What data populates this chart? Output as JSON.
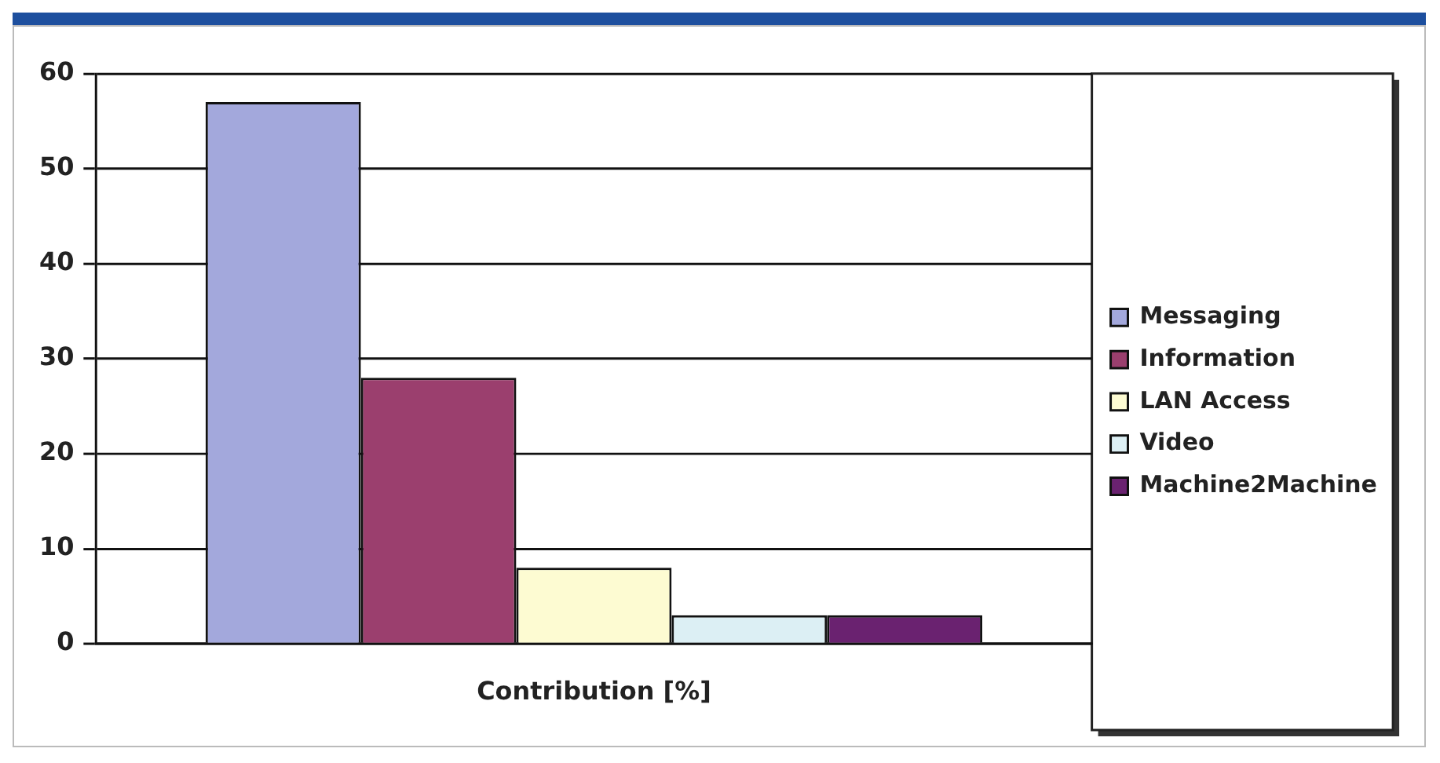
{
  "chart_data": {
    "type": "bar",
    "categories": [
      "Contribution [%]"
    ],
    "series": [
      {
        "name": "Messaging",
        "color": "#a3a8dc",
        "values": [
          57
        ]
      },
      {
        "name": "Information",
        "color": "#9b3f6e",
        "values": [
          28
        ]
      },
      {
        "name": "LAN Access",
        "color": "#fdfbd2",
        "values": [
          8
        ]
      },
      {
        "name": "Video",
        "color": "#dceff4",
        "values": [
          3
        ]
      },
      {
        "name": "Machine2Machine",
        "color": "#6a2270",
        "values": [
          3
        ]
      }
    ],
    "ylim": [
      0,
      60
    ],
    "yticks": [
      0,
      10,
      20,
      30,
      40,
      50,
      60
    ],
    "grid": "y",
    "legend": "right"
  }
}
